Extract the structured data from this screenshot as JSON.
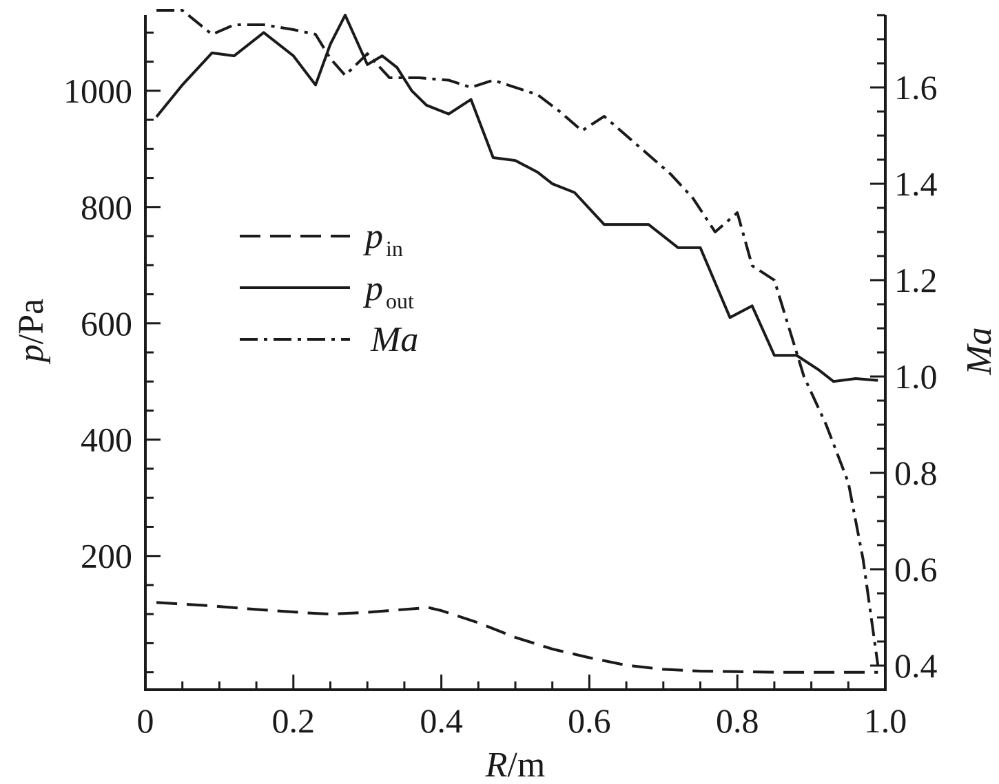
{
  "chart_data": {
    "type": "line",
    "xlabel": {
      "main": "R",
      "unit": "/m"
    },
    "ylabel_left": {
      "main": "p",
      "unit": "/Pa"
    },
    "ylabel_right": {
      "main": "Ma"
    },
    "xlim": [
      0,
      1.0
    ],
    "ylim_left": [
      -30,
      1130
    ],
    "ylim_right": [
      0.35,
      1.75
    ],
    "x_ticks": [
      "0",
      "0.2",
      "0.4",
      "0.6",
      "0.8",
      "1.0"
    ],
    "y_left_ticks": [
      "200",
      "400",
      "600",
      "800",
      "1000"
    ],
    "y_right_ticks": [
      "0.4",
      "0.6",
      "0.8",
      "1.0",
      "1.2",
      "1.4",
      "1.6"
    ],
    "grid": false,
    "legend_position": "upper-left",
    "series": [
      {
        "name": "p",
        "subscript": "in",
        "axis": "left",
        "style": "dashed",
        "x": [
          0.015,
          0.08,
          0.15,
          0.22,
          0.25,
          0.3,
          0.37,
          0.38,
          0.4,
          0.45,
          0.5,
          0.55,
          0.6,
          0.65,
          0.7,
          0.75,
          0.8,
          0.85,
          0.9,
          0.95,
          0.99
        ],
        "y": [
          120,
          115,
          108,
          102,
          100,
          103,
          110,
          112,
          106,
          85,
          60,
          40,
          25,
          12,
          5,
          2,
          1,
          0,
          0,
          0,
          0
        ]
      },
      {
        "name": "p",
        "subscript": "out",
        "axis": "left",
        "style": "solid",
        "x": [
          0.015,
          0.05,
          0.09,
          0.12,
          0.16,
          0.2,
          0.23,
          0.25,
          0.27,
          0.3,
          0.32,
          0.34,
          0.36,
          0.38,
          0.41,
          0.44,
          0.47,
          0.5,
          0.53,
          0.55,
          0.58,
          0.62,
          0.65,
          0.68,
          0.72,
          0.75,
          0.79,
          0.82,
          0.85,
          0.88,
          0.91,
          0.93,
          0.96,
          0.99
        ],
        "y": [
          955,
          1010,
          1065,
          1060,
          1100,
          1060,
          1010,
          1080,
          1130,
          1045,
          1060,
          1040,
          1000,
          975,
          960,
          985,
          885,
          880,
          860,
          840,
          825,
          770,
          770,
          770,
          730,
          730,
          610,
          630,
          545,
          545,
          520,
          500,
          505,
          502
        ]
      },
      {
        "name": "Ma",
        "subscript": "",
        "axis": "right",
        "style": "dashdot",
        "x": [
          0.015,
          0.05,
          0.09,
          0.12,
          0.16,
          0.2,
          0.23,
          0.25,
          0.27,
          0.3,
          0.33,
          0.37,
          0.41,
          0.44,
          0.47,
          0.5,
          0.53,
          0.56,
          0.59,
          0.62,
          0.65,
          0.68,
          0.71,
          0.74,
          0.77,
          0.8,
          0.82,
          0.85,
          0.87,
          0.89,
          0.92,
          0.95,
          0.97,
          0.99
        ],
        "y": [
          1.76,
          1.76,
          1.71,
          1.73,
          1.73,
          1.72,
          1.71,
          1.66,
          1.625,
          1.67,
          1.62,
          1.62,
          1.615,
          1.6,
          1.615,
          1.6,
          1.585,
          1.55,
          1.51,
          1.54,
          1.5,
          1.46,
          1.42,
          1.37,
          1.3,
          1.34,
          1.23,
          1.2,
          1.1,
          1.0,
          0.9,
          0.78,
          0.62,
          0.4
        ]
      }
    ]
  }
}
